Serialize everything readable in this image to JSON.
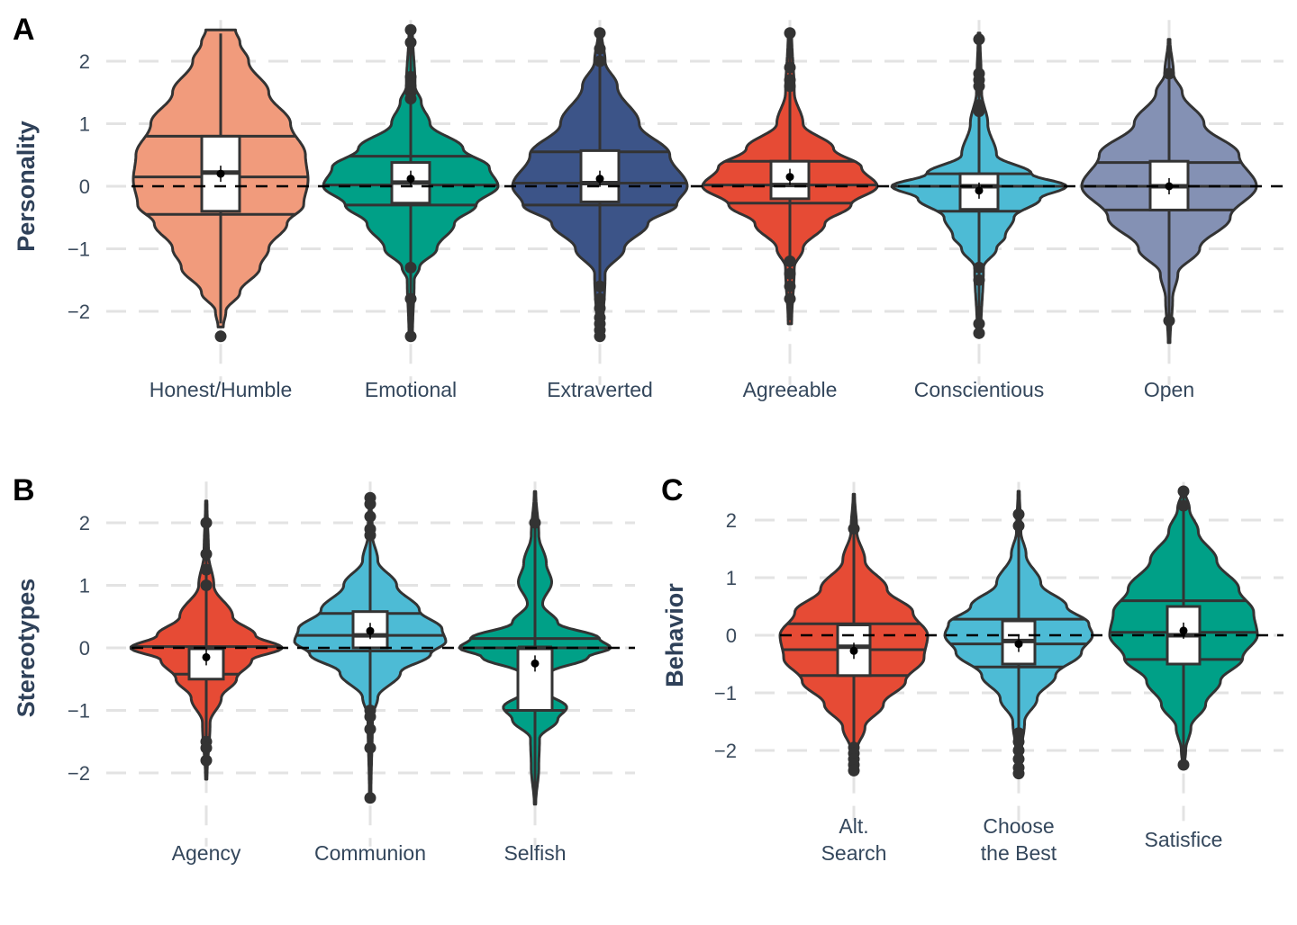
{
  "chart_data": [
    {
      "type": "violin",
      "panel_label": "A",
      "ylabel": "Personality",
      "yticks": [
        -2,
        -1,
        0,
        1,
        2
      ],
      "ytick_labels": [
        "−2",
        "−1",
        "0",
        "1",
        "2"
      ],
      "ylim": [
        -2.6,
        2.6
      ],
      "grid": true,
      "reference_line": 0,
      "categories": [
        {
          "label": [
            "Honest/Humble"
          ],
          "color": "#F19B7C",
          "min": -2.25,
          "max": 2.5,
          "density": [
            [
              2.5,
              0.17
            ],
            [
              2.3,
              0.22
            ],
            [
              2.0,
              0.32
            ],
            [
              1.5,
              0.55
            ],
            [
              1.0,
              0.8
            ],
            [
              0.5,
              0.97
            ],
            [
              0.1,
              1.0
            ],
            [
              -0.3,
              0.95
            ],
            [
              -0.6,
              0.76
            ],
            [
              -1.0,
              0.55
            ],
            [
              -1.3,
              0.45
            ],
            [
              -1.7,
              0.22
            ],
            [
              -2.0,
              0.06
            ],
            [
              -2.25,
              0.03
            ]
          ],
          "quantile_lines": [
            0.8,
            0.15,
            -0.45
          ],
          "box": [
            -0.4,
            0.22,
            0.8
          ],
          "mean": 0.2,
          "outliers": [
            -2.4
          ]
        },
        {
          "label": [
            "Emotional"
          ],
          "color": "#00A087",
          "min": -2.4,
          "max": 2.5,
          "density": [
            [
              2.5,
              0.02
            ],
            [
              1.6,
              0.05
            ],
            [
              1.35,
              0.12
            ],
            [
              1.0,
              0.22
            ],
            [
              0.6,
              0.6
            ],
            [
              0.3,
              0.9
            ],
            [
              0.0,
              1.0
            ],
            [
              -0.3,
              0.75
            ],
            [
              -0.6,
              0.5
            ],
            [
              -1.0,
              0.3
            ],
            [
              -1.3,
              0.1
            ],
            [
              -1.5,
              0.04
            ],
            [
              -2.4,
              0.02
            ]
          ],
          "quantile_lines": [
            0.48,
            0.02,
            -0.3
          ],
          "box": [
            -0.27,
            0.06,
            0.38
          ],
          "mean": 0.12,
          "outliers": [
            2.5,
            2.3,
            1.75,
            1.6,
            1.5,
            1.4,
            -1.3,
            -1.8,
            -2.4
          ]
        },
        {
          "label": [
            "Extraverted"
          ],
          "color": "#3C5488",
          "min": -2.4,
          "max": 2.45,
          "density": [
            [
              2.45,
              0.02
            ],
            [
              2.0,
              0.06
            ],
            [
              1.6,
              0.2
            ],
            [
              1.0,
              0.45
            ],
            [
              0.5,
              0.8
            ],
            [
              0.0,
              1.0
            ],
            [
              -0.3,
              0.88
            ],
            [
              -0.6,
              0.55
            ],
            [
              -1.0,
              0.28
            ],
            [
              -1.4,
              0.06
            ],
            [
              -2.4,
              0.03
            ]
          ],
          "quantile_lines": [
            0.55,
            0.05,
            -0.3
          ],
          "box": [
            -0.25,
            0.05,
            0.57
          ],
          "mean": 0.12,
          "outliers": [
            2.45,
            2.2,
            2.0,
            -1.6,
            -1.8,
            -1.95,
            -2.1,
            -2.2,
            -2.3,
            -2.4
          ]
        },
        {
          "label": [
            "Agreeable"
          ],
          "color": "#E64B35",
          "min": -2.2,
          "max": 2.45,
          "density": [
            [
              2.45,
              0.02
            ],
            [
              1.5,
              0.05
            ],
            [
              1.0,
              0.15
            ],
            [
              0.6,
              0.5
            ],
            [
              0.3,
              0.82
            ],
            [
              0.0,
              1.0
            ],
            [
              -0.3,
              0.7
            ],
            [
              -0.6,
              0.4
            ],
            [
              -1.0,
              0.15
            ],
            [
              -1.3,
              0.05
            ],
            [
              -2.2,
              0.02
            ]
          ],
          "quantile_lines": [
            0.4,
            0.02,
            -0.27
          ],
          "box": [
            -0.2,
            0.02,
            0.4
          ],
          "mean": 0.15,
          "outliers": [
            2.45,
            1.9,
            1.7,
            1.6,
            -1.2,
            -1.4,
            -1.6,
            -1.8
          ]
        },
        {
          "label": [
            "Conscientious"
          ],
          "color": "#4DBBD5",
          "min": -2.35,
          "max": 2.45,
          "density": [
            [
              2.45,
              0.01
            ],
            [
              1.5,
              0.03
            ],
            [
              1.0,
              0.1
            ],
            [
              0.5,
              0.2
            ],
            [
              0.2,
              0.6
            ],
            [
              0.0,
              1.0
            ],
            [
              -0.2,
              0.7
            ],
            [
              -0.5,
              0.4
            ],
            [
              -0.8,
              0.3
            ],
            [
              -1.0,
              0.2
            ],
            [
              -1.3,
              0.05
            ],
            [
              -2.35,
              0.02
            ]
          ],
          "quantile_lines": [
            0.2,
            0.0,
            -0.4
          ],
          "box": [
            -0.37,
            0.0,
            0.2
          ],
          "mean": -0.07,
          "outliers": [
            2.35,
            1.8,
            1.7,
            1.6,
            1.3,
            1.2,
            -1.3,
            -1.5,
            -2.2,
            -2.35
          ]
        },
        {
          "label": [
            "Open"
          ],
          "color": "#8491B4",
          "min": -2.5,
          "max": 2.35,
          "density": [
            [
              2.35,
              0.01
            ],
            [
              1.8,
              0.05
            ],
            [
              1.5,
              0.15
            ],
            [
              1.0,
              0.4
            ],
            [
              0.5,
              0.8
            ],
            [
              0.0,
              1.0
            ],
            [
              -0.5,
              0.7
            ],
            [
              -1.0,
              0.35
            ],
            [
              -1.4,
              0.1
            ],
            [
              -1.8,
              0.04
            ],
            [
              -2.5,
              0.01
            ]
          ],
          "quantile_lines": [
            0.38,
            0.0,
            -0.38
          ],
          "box": [
            -0.38,
            0.0,
            0.4
          ],
          "mean": 0.0,
          "outliers": [
            1.8,
            -2.15
          ]
        }
      ]
    },
    {
      "type": "violin",
      "panel_label": "B",
      "ylabel": "Stereotypes",
      "yticks": [
        -2,
        -1,
        0,
        1,
        2
      ],
      "ytick_labels": [
        "−2",
        "−1",
        "0",
        "1",
        "2"
      ],
      "ylim": [
        -2.6,
        2.6
      ],
      "grid": true,
      "reference_line": 0,
      "categories": [
        {
          "label": [
            "Agency"
          ],
          "color": "#E64B35",
          "min": -2.1,
          "max": 2.35,
          "density": [
            [
              2.35,
              0.01
            ],
            [
              1.5,
              0.03
            ],
            [
              1.0,
              0.1
            ],
            [
              0.5,
              0.35
            ],
            [
              0.2,
              0.65
            ],
            [
              0.0,
              1.0
            ],
            [
              -0.2,
              0.6
            ],
            [
              -0.5,
              0.4
            ],
            [
              -0.8,
              0.2
            ],
            [
              -1.2,
              0.05
            ],
            [
              -2.1,
              0.01
            ]
          ],
          "quantile_lines": [
            0.02,
            -0.42
          ],
          "box": [
            -0.5,
            0.0,
            0.0
          ],
          "mean": -0.15,
          "outliers": [
            2.0,
            1.5,
            1.25,
            1.0,
            -1.5,
            -1.6,
            -1.8
          ]
        },
        {
          "label": [
            "Communion"
          ],
          "color": "#4DBBD5",
          "min": -2.4,
          "max": 2.4,
          "density": [
            [
              2.4,
              0.01
            ],
            [
              1.8,
              0.03
            ],
            [
              1.4,
              0.1
            ],
            [
              1.0,
              0.35
            ],
            [
              0.6,
              0.65
            ],
            [
              0.3,
              0.95
            ],
            [
              0.1,
              1.0
            ],
            [
              -0.1,
              0.8
            ],
            [
              -0.4,
              0.4
            ],
            [
              -0.8,
              0.1
            ],
            [
              -1.1,
              0.03
            ],
            [
              -2.4,
              0.01
            ]
          ],
          "quantile_lines": [
            0.55,
            0.2,
            -0.05
          ],
          "box": [
            0.0,
            0.2,
            0.58
          ],
          "mean": 0.27,
          "outliers": [
            2.4,
            2.3,
            2.1,
            1.9,
            1.8,
            -1.0,
            -1.1,
            -1.3,
            -1.6,
            -2.4
          ]
        },
        {
          "label": [
            "Selfish"
          ],
          "color": "#00A087",
          "min": -2.5,
          "max": 2.5,
          "density": [
            [
              2.5,
              0.01
            ],
            [
              1.8,
              0.05
            ],
            [
              1.35,
              0.15
            ],
            [
              1.05,
              0.22
            ],
            [
              0.7,
              0.1
            ],
            [
              0.4,
              0.3
            ],
            [
              0.15,
              0.85
            ],
            [
              0.0,
              1.0
            ],
            [
              -0.15,
              0.7
            ],
            [
              -0.4,
              0.2
            ],
            [
              -0.7,
              0.15
            ],
            [
              -0.95,
              0.42
            ],
            [
              -1.15,
              0.3
            ],
            [
              -1.45,
              0.06
            ],
            [
              -1.9,
              0.05
            ],
            [
              -2.5,
              0.01
            ]
          ],
          "quantile_lines": [
            0.15,
            0.0,
            -1.0
          ],
          "box": [
            -1.0,
            0.0,
            0.0
          ],
          "mean": -0.25,
          "outliers": [
            2.0
          ]
        }
      ]
    },
    {
      "type": "violin",
      "panel_label": "C",
      "ylabel": "Behavior",
      "yticks": [
        -2,
        -1,
        0,
        1,
        2
      ],
      "ytick_labels": [
        "−2",
        "−1",
        "0",
        "1",
        "2"
      ],
      "ylim": [
        -2.6,
        2.6
      ],
      "grid": true,
      "reference_line": 0,
      "categories": [
        {
          "label": [
            "Alt.",
            "Search"
          ],
          "color": "#E64B35",
          "min": -2.4,
          "max": 2.45,
          "density": [
            [
              2.45,
              0.01
            ],
            [
              1.8,
              0.04
            ],
            [
              1.3,
              0.15
            ],
            [
              0.8,
              0.45
            ],
            [
              0.4,
              0.8
            ],
            [
              0.0,
              1.0
            ],
            [
              -0.4,
              0.95
            ],
            [
              -0.8,
              0.7
            ],
            [
              -1.2,
              0.4
            ],
            [
              -1.6,
              0.15
            ],
            [
              -2.0,
              0.04
            ],
            [
              -2.4,
              0.02
            ]
          ],
          "quantile_lines": [
            0.2,
            -0.25,
            -0.7
          ],
          "box": [
            -0.7,
            -0.2,
            0.18
          ],
          "mean": -0.27,
          "outliers": [
            1.85,
            -1.95,
            -2.05,
            -2.15,
            -2.25,
            -2.35
          ]
        },
        {
          "label": [
            "Choose",
            "the Best"
          ],
          "color": "#4DBBD5",
          "min": -2.45,
          "max": 2.5,
          "density": [
            [
              2.5,
              0.01
            ],
            [
              1.8,
              0.03
            ],
            [
              1.4,
              0.1
            ],
            [
              0.9,
              0.3
            ],
            [
              0.5,
              0.65
            ],
            [
              0.2,
              0.95
            ],
            [
              0.0,
              1.0
            ],
            [
              -0.3,
              0.85
            ],
            [
              -0.7,
              0.5
            ],
            [
              -1.1,
              0.25
            ],
            [
              -1.5,
              0.08
            ],
            [
              -2.0,
              0.04
            ],
            [
              -2.45,
              0.02
            ]
          ],
          "quantile_lines": [
            0.28,
            -0.15,
            -0.55
          ],
          "box": [
            -0.5,
            -0.1,
            0.25
          ],
          "mean": -0.15,
          "outliers": [
            2.1,
            1.9,
            -1.7,
            -1.85,
            -2.0,
            -2.15,
            -2.3,
            -2.4
          ]
        },
        {
          "label": [
            "Satisfice"
          ],
          "color": "#00A087",
          "min": -2.3,
          "max": 2.5,
          "density": [
            [
              2.5,
              0.02
            ],
            [
              2.2,
              0.08
            ],
            [
              1.8,
              0.2
            ],
            [
              1.3,
              0.45
            ],
            [
              0.8,
              0.75
            ],
            [
              0.4,
              0.95
            ],
            [
              0.0,
              1.0
            ],
            [
              -0.4,
              0.8
            ],
            [
              -0.8,
              0.5
            ],
            [
              -1.2,
              0.3
            ],
            [
              -1.6,
              0.1
            ],
            [
              -2.0,
              0.03
            ],
            [
              -2.3,
              0.01
            ]
          ],
          "quantile_lines": [
            0.6,
            0.05,
            -0.42
          ],
          "box": [
            -0.5,
            0.0,
            0.5
          ],
          "mean": 0.08,
          "outliers": [
            2.5,
            2.25,
            -2.25
          ]
        }
      ]
    }
  ]
}
